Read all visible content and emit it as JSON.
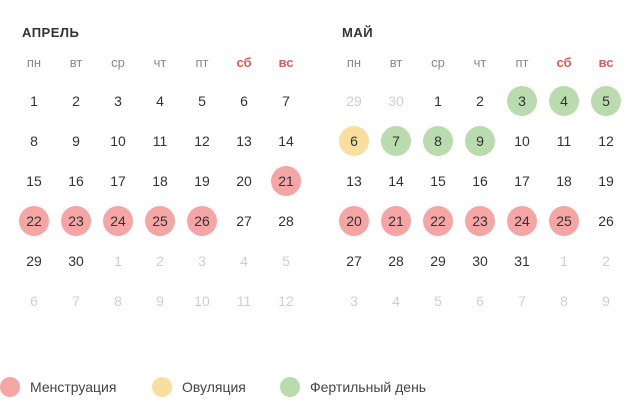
{
  "weekdays": [
    {
      "label": "пн",
      "weekend": false
    },
    {
      "label": "вт",
      "weekend": false
    },
    {
      "label": "ср",
      "weekend": false
    },
    {
      "label": "чт",
      "weekend": false
    },
    {
      "label": "пт",
      "weekend": false
    },
    {
      "label": "сб",
      "weekend": true
    },
    {
      "label": "вс",
      "weekend": true
    }
  ],
  "colors": {
    "menstruation": "#f6a5a5",
    "ovulation": "#f8dfa0",
    "fertile": "#b9dbae",
    "weekend": "#e05a5a"
  },
  "months": [
    {
      "id": "april",
      "title": "АПРЕЛЬ",
      "weeks": [
        [
          {
            "d": "1"
          },
          {
            "d": "2"
          },
          {
            "d": "3"
          },
          {
            "d": "4"
          },
          {
            "d": "5"
          },
          {
            "d": "6"
          },
          {
            "d": "7"
          }
        ],
        [
          {
            "d": "8"
          },
          {
            "d": "9"
          },
          {
            "d": "10"
          },
          {
            "d": "11"
          },
          {
            "d": "12"
          },
          {
            "d": "13"
          },
          {
            "d": "14"
          }
        ],
        [
          {
            "d": "15"
          },
          {
            "d": "16"
          },
          {
            "d": "17"
          },
          {
            "d": "18"
          },
          {
            "d": "19"
          },
          {
            "d": "20"
          },
          {
            "d": "21",
            "t": "menstruation"
          }
        ],
        [
          {
            "d": "22",
            "t": "menstruation"
          },
          {
            "d": "23",
            "t": "menstruation"
          },
          {
            "d": "24",
            "t": "menstruation"
          },
          {
            "d": "25",
            "t": "menstruation"
          },
          {
            "d": "26",
            "t": "menstruation"
          },
          {
            "d": "27"
          },
          {
            "d": "28"
          }
        ],
        [
          {
            "d": "29"
          },
          {
            "d": "30"
          },
          {
            "d": "1",
            "o": true
          },
          {
            "d": "2",
            "o": true
          },
          {
            "d": "3",
            "o": true
          },
          {
            "d": "4",
            "o": true
          },
          {
            "d": "5",
            "o": true
          }
        ],
        [
          {
            "d": "6",
            "o": true
          },
          {
            "d": "7",
            "o": true
          },
          {
            "d": "8",
            "o": true
          },
          {
            "d": "9",
            "o": true
          },
          {
            "d": "10",
            "o": true
          },
          {
            "d": "11",
            "o": true
          },
          {
            "d": "12",
            "o": true
          }
        ]
      ]
    },
    {
      "id": "may",
      "title": "МАЙ",
      "weeks": [
        [
          {
            "d": "29",
            "o": true
          },
          {
            "d": "30",
            "o": true
          },
          {
            "d": "1"
          },
          {
            "d": "2"
          },
          {
            "d": "3",
            "t": "fertile"
          },
          {
            "d": "4",
            "t": "fertile"
          },
          {
            "d": "5",
            "t": "fertile"
          }
        ],
        [
          {
            "d": "6",
            "t": "ovulation"
          },
          {
            "d": "7",
            "t": "fertile"
          },
          {
            "d": "8",
            "t": "fertile"
          },
          {
            "d": "9",
            "t": "fertile"
          },
          {
            "d": "10"
          },
          {
            "d": "11"
          },
          {
            "d": "12"
          }
        ],
        [
          {
            "d": "13"
          },
          {
            "d": "14"
          },
          {
            "d": "15"
          },
          {
            "d": "16"
          },
          {
            "d": "17"
          },
          {
            "d": "18"
          },
          {
            "d": "19"
          }
        ],
        [
          {
            "d": "20",
            "t": "menstruation"
          },
          {
            "d": "21",
            "t": "menstruation"
          },
          {
            "d": "22",
            "t": "menstruation"
          },
          {
            "d": "23",
            "t": "menstruation"
          },
          {
            "d": "24",
            "t": "menstruation"
          },
          {
            "d": "25",
            "t": "menstruation"
          },
          {
            "d": "26"
          }
        ],
        [
          {
            "d": "27"
          },
          {
            "d": "28"
          },
          {
            "d": "29"
          },
          {
            "d": "30"
          },
          {
            "d": "31"
          },
          {
            "d": "1",
            "o": true
          },
          {
            "d": "2",
            "o": true
          }
        ],
        [
          {
            "d": "3",
            "o": true
          },
          {
            "d": "4",
            "o": true
          },
          {
            "d": "5",
            "o": true
          },
          {
            "d": "6",
            "o": true
          },
          {
            "d": "7",
            "o": true
          },
          {
            "d": "8",
            "o": true
          },
          {
            "d": "9",
            "o": true
          }
        ]
      ]
    }
  ],
  "legend": [
    {
      "type": "menstruation",
      "label": "Менструация"
    },
    {
      "type": "ovulation",
      "label": "Овуляция"
    },
    {
      "type": "fertile",
      "label": "Фертильный день"
    }
  ]
}
